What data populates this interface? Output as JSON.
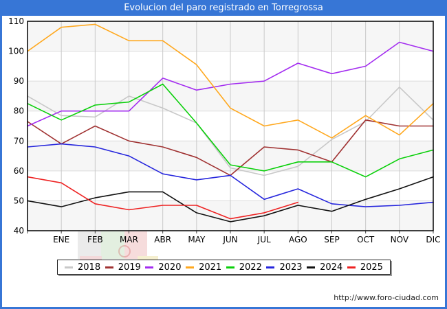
{
  "title_bar": {
    "title": "Evolucion del paro registrado en Torregrossa",
    "bg_color": "#3776d6"
  },
  "footer": {
    "url": "http://www.foro-ciudad.com"
  },
  "chart_data": {
    "type": "line",
    "title": "Evolucion del paro registrado en Torregrossa",
    "x_labels": [
      "ENE",
      "FEB",
      "MAR",
      "ABR",
      "MAY",
      "JUN",
      "JUL",
      "AGO",
      "SEP",
      "OCT",
      "NOV",
      "DIC"
    ],
    "x_note": "Each series has 13 points: the first sits on the left axis edge (carry-over from previous December), the other 12 on the ENE-DIC gridlines.",
    "ylim": [
      40,
      110
    ],
    "ytick_step": 10,
    "grid": true,
    "legend_position": "bottom",
    "plot_style": {
      "band_colors": [
        "#f6f6f6",
        "#ffffff"
      ],
      "vgrid_color": "#c9c9c9",
      "hgrid_color": "#dcdcdc",
      "border_color": "#000000"
    },
    "series": [
      {
        "name": "2018",
        "color": "#c8c8c8",
        "values": [
          85,
          78.5,
          78,
          85,
          81,
          76,
          61,
          58.5,
          61.5,
          70.5,
          76.5,
          88,
          77
        ]
      },
      {
        "name": "2019",
        "color": "#a03232",
        "values": [
          76.5,
          69,
          75,
          70,
          68,
          64.5,
          58.5,
          68,
          67,
          63,
          77,
          75,
          75
        ]
      },
      {
        "name": "2020",
        "color": "#a32cf0",
        "values": [
          75,
          80,
          80,
          80,
          91,
          87,
          89,
          90,
          96,
          92.5,
          95,
          103,
          100
        ]
      },
      {
        "name": "2021",
        "color": "#ffa81e",
        "values": [
          100,
          108,
          109,
          103.5,
          103.5,
          95.5,
          81,
          75,
          77,
          71,
          78.5,
          72,
          82.5
        ]
      },
      {
        "name": "2022",
        "color": "#0ad00a",
        "values": [
          82.5,
          77,
          82,
          83,
          89,
          76,
          62,
          60,
          63,
          63,
          58,
          64,
          67
        ]
      },
      {
        "name": "2023",
        "color": "#2626dd",
        "values": [
          68,
          69,
          68,
          65,
          59,
          57,
          58.5,
          50.5,
          54,
          49,
          48,
          48.5,
          49.5
        ]
      },
      {
        "name": "2024",
        "color": "#111111",
        "values": [
          50,
          48,
          51,
          53,
          53,
          46,
          43,
          45,
          48.5,
          46.5,
          50.5,
          54,
          58
        ]
      },
      {
        "name": "2025",
        "color": "#ee2222",
        "values": [
          58,
          56,
          49,
          47,
          48.5,
          48.5,
          44,
          46,
          49.5
        ]
      }
    ]
  }
}
